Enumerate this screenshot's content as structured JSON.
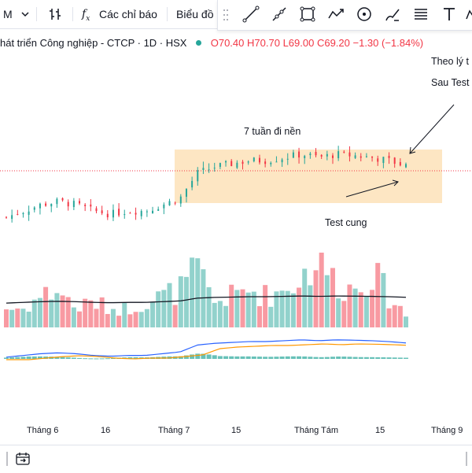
{
  "toolbar": {
    "interval": "M",
    "indicators_label": "Các chỉ báo",
    "chart_type_label": "Biểu đồ"
  },
  "legend": {
    "title": "hát triển Công nghiệp - CTCP · 1D · HSX",
    "o": "O70.40",
    "h": "H70.70",
    "l": "L69.00",
    "c": "C69.20",
    "change": "−1.30 (−1.84%)"
  },
  "annotations": {
    "base_label": "7 tuần đi nền",
    "test_label": "Test cung",
    "note_line1": "Theo lý t",
    "note_line2": "Sau Test"
  },
  "x_axis": {
    "ticks": [
      "Tháng 6",
      "16",
      "Tháng 7",
      "15",
      "Tháng Tám",
      "15",
      "Tháng 9"
    ]
  },
  "colors": {
    "up": "#26a69a",
    "down": "#f23645",
    "box_fill": "#fde2b8",
    "ma_line": "#131722",
    "macd_line": "#2962ff",
    "signal_line": "#ff9800"
  },
  "chart_data": {
    "type": "candlestick",
    "x": [
      "Tháng 6",
      "16",
      "Tháng 7",
      "15",
      "Tháng Tám",
      "15",
      "Tháng 9"
    ],
    "ohlc_last": {
      "open": 70.4,
      "high": 70.7,
      "low": 69.0,
      "close": 69.2
    },
    "close_trend": [
      61,
      62,
      63,
      63.5,
      63,
      62,
      61.5,
      62,
      62,
      63,
      64,
      68,
      69,
      69.5,
      70,
      70,
      70.5,
      71,
      70.5,
      71,
      70.8,
      70.5,
      70,
      69.2
    ],
    "volume_trend": [
      3,
      3,
      5,
      6,
      3,
      4,
      3,
      3,
      4,
      5,
      6,
      9,
      4,
      5,
      6,
      5,
      6,
      8,
      11,
      7,
      6,
      9,
      5,
      2
    ]
  }
}
